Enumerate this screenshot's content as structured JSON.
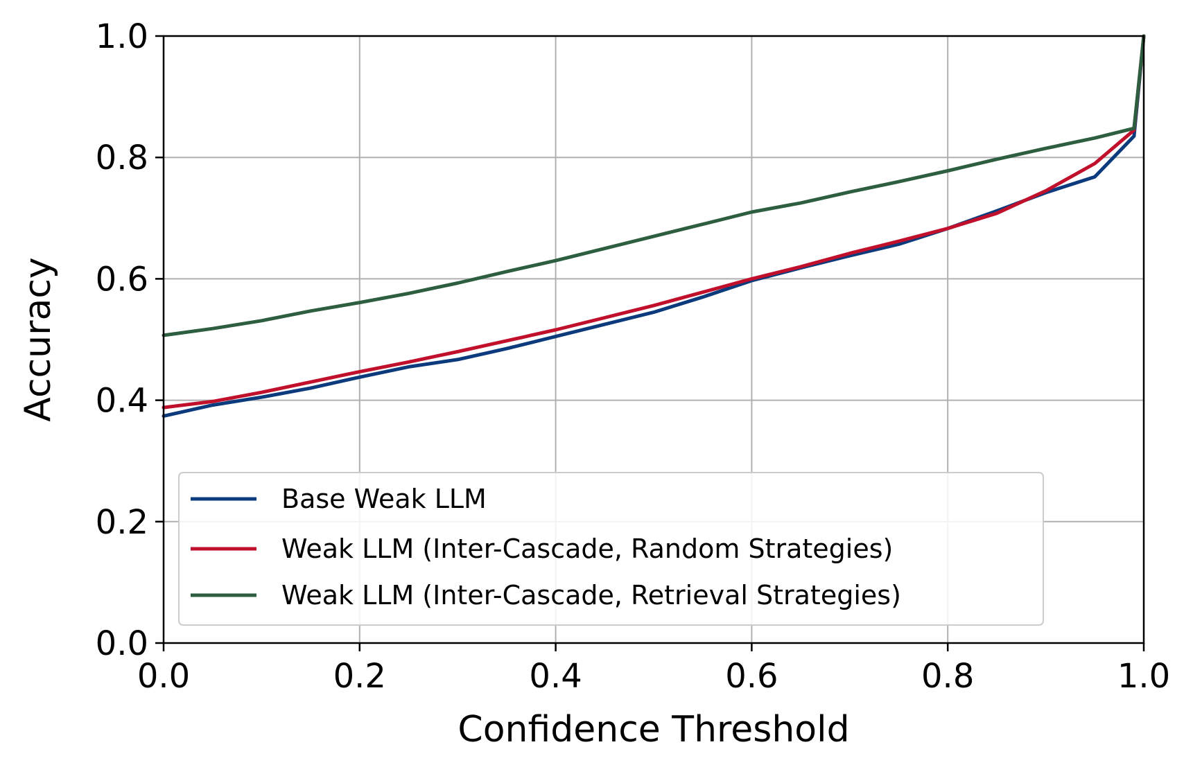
{
  "chart_data": {
    "type": "line",
    "title": "",
    "xlabel": "Confidence Threshold",
    "ylabel": "Accuracy",
    "xlim": [
      0.0,
      1.0
    ],
    "ylim": [
      0.0,
      1.0
    ],
    "xticks": [
      "0.0",
      "0.2",
      "0.4",
      "0.6",
      "0.8",
      "1.0"
    ],
    "yticks": [
      "0.0",
      "0.2",
      "0.4",
      "0.6",
      "0.8",
      "1.0"
    ],
    "grid": true,
    "legend_position": "lower-left",
    "x": [
      0.0,
      0.05,
      0.1,
      0.15,
      0.2,
      0.25,
      0.3,
      0.35,
      0.4,
      0.45,
      0.5,
      0.55,
      0.6,
      0.65,
      0.7,
      0.75,
      0.8,
      0.85,
      0.9,
      0.95,
      0.99,
      1.0
    ],
    "series": [
      {
        "name": "Base Weak LLM",
        "color": "#0c3b7d",
        "values": [
          0.374,
          0.392,
          0.405,
          0.42,
          0.438,
          0.455,
          0.467,
          0.485,
          0.505,
          0.525,
          0.545,
          0.57,
          0.597,
          0.618,
          0.638,
          0.657,
          0.683,
          0.712,
          0.742,
          0.768,
          0.835,
          1.0
        ]
      },
      {
        "name": "Weak LLM (Inter-Cascade, Random Strategies)",
        "color": "#c0102c",
        "values": [
          0.388,
          0.398,
          0.413,
          0.43,
          0.447,
          0.463,
          0.48,
          0.498,
          0.516,
          0.536,
          0.556,
          0.578,
          0.6,
          0.62,
          0.642,
          0.662,
          0.683,
          0.708,
          0.745,
          0.79,
          0.845,
          1.0
        ]
      },
      {
        "name": "Weak LLM (Inter-Cascade, Retrieval Strategies)",
        "color": "#2d5e40",
        "values": [
          0.507,
          0.518,
          0.531,
          0.547,
          0.561,
          0.576,
          0.593,
          0.612,
          0.63,
          0.65,
          0.67,
          0.69,
          0.71,
          0.725,
          0.743,
          0.76,
          0.778,
          0.797,
          0.815,
          0.832,
          0.848,
          1.0
        ]
      }
    ]
  }
}
